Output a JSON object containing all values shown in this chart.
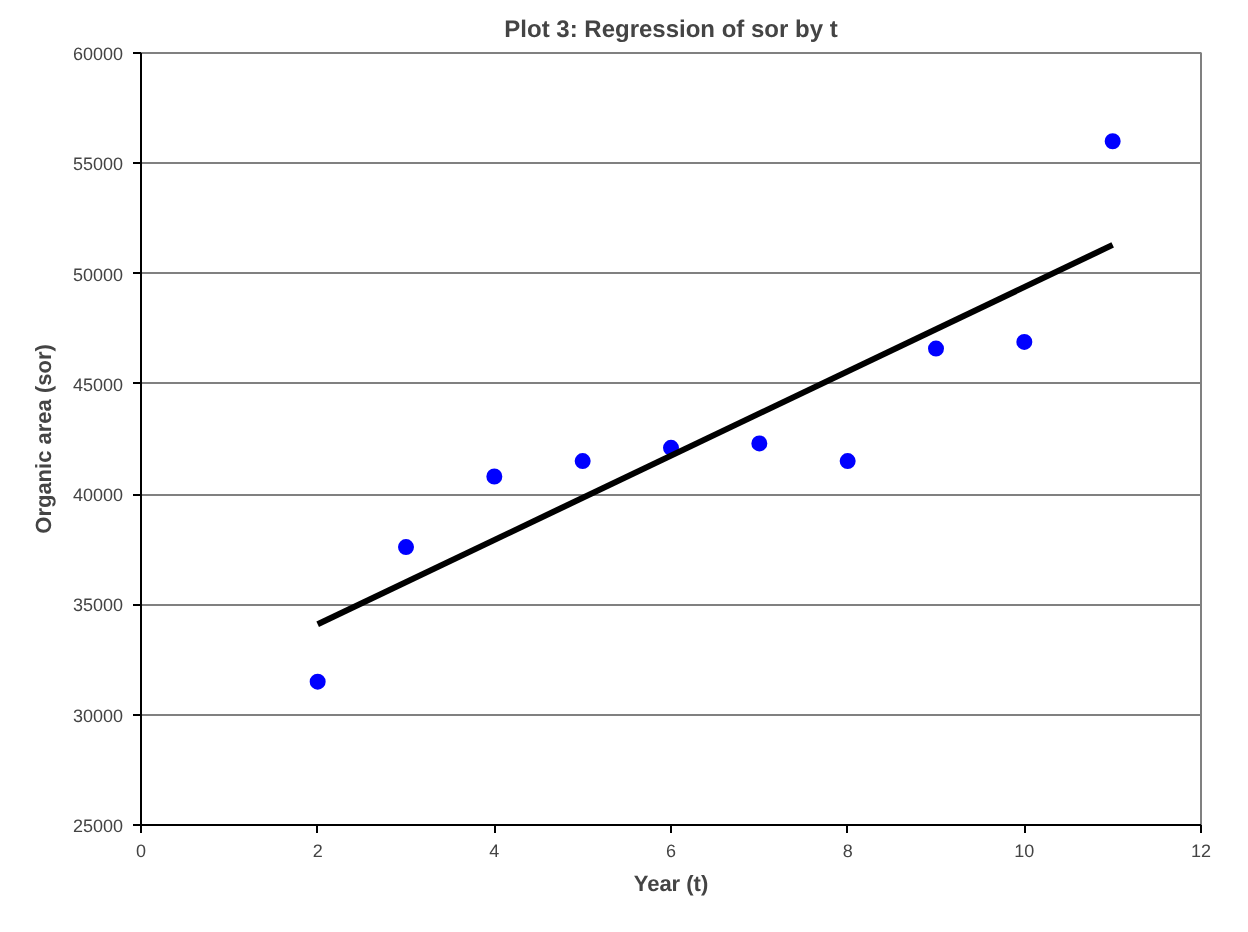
{
  "chart_data": {
    "type": "scatter",
    "title": "Plot 3: Regression of sor by t",
    "xlabel": "Year (t)",
    "ylabel": "Organic area (sor)",
    "x": [
      2,
      3,
      4,
      5,
      6,
      7,
      8,
      9,
      10,
      11
    ],
    "series": [
      {
        "marker": "circle",
        "color": "#0000ff",
        "values": [
          31500,
          37600,
          40800,
          41500,
          42100,
          42300,
          41500,
          46600,
          46900,
          56000
        ]
      },
      {
        "type": "line",
        "color": "#000000",
        "x": [
          2,
          11
        ],
        "values": [
          34100,
          51300
        ]
      }
    ],
    "xlim": [
      0,
      12
    ],
    "xticks": [
      0,
      2,
      4,
      6,
      8,
      10,
      12
    ],
    "ylim": [
      25000,
      60000
    ],
    "yticks": [
      25000,
      30000,
      35000,
      40000,
      45000,
      50000,
      55000,
      60000
    ],
    "grid": "y"
  }
}
